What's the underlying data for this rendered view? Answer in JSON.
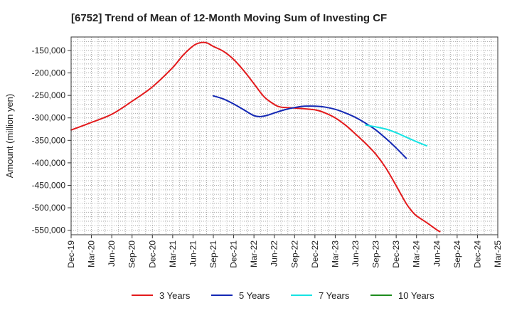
{
  "chart_data": {
    "type": "line",
    "title": "[6752]  Trend of Mean of 12-Month Moving Sum of Investing CF",
    "xlabel": "",
    "ylabel": "Amount (million yen)",
    "ylim": [
      -560000,
      -120000
    ],
    "yticks": [
      -150000,
      -200000,
      -250000,
      -300000,
      -350000,
      -400000,
      -450000,
      -500000,
      -550000
    ],
    "ytick_labels": [
      "-150,000",
      "-200,000",
      "-250,000",
      "-300,000",
      "-350,000",
      "-400,000",
      "-450,000",
      "-500,000",
      "-550,000"
    ],
    "xtick_labels": [
      "Dec-19",
      "Mar-20",
      "Jun-20",
      "Sep-20",
      "Dec-20",
      "Mar-21",
      "Jun-21",
      "Sep-21",
      "Dec-21",
      "Mar-22",
      "Jun-22",
      "Sep-22",
      "Dec-22",
      "Mar-23",
      "Jun-23",
      "Sep-23",
      "Dec-23",
      "Mar-24",
      "Jun-24",
      "Sep-24",
      "Dec-24",
      "Mar-25"
    ],
    "grid": true,
    "legend_position": "bottom",
    "series": [
      {
        "name": "3 Years",
        "color": "#e31a1c",
        "points": [
          [
            0,
            -327000
          ],
          [
            1,
            -310000
          ],
          [
            2,
            -292000
          ],
          [
            3,
            -263000
          ],
          [
            4,
            -231000
          ],
          [
            5,
            -188000
          ],
          [
            5.5,
            -161000
          ],
          [
            6,
            -140000
          ],
          [
            6.33,
            -133000
          ],
          [
            6.67,
            -133000
          ],
          [
            7,
            -141000
          ],
          [
            7.5,
            -152000
          ],
          [
            8,
            -170000
          ],
          [
            8.5,
            -195000
          ],
          [
            9,
            -224000
          ],
          [
            9.5,
            -253000
          ],
          [
            10,
            -270000
          ],
          [
            10.33,
            -276000
          ],
          [
            11,
            -278000
          ],
          [
            12,
            -282000
          ],
          [
            12.5,
            -289000
          ],
          [
            13,
            -300000
          ],
          [
            13.5,
            -316000
          ],
          [
            14,
            -336000
          ],
          [
            14.5,
            -357000
          ],
          [
            15,
            -381000
          ],
          [
            15.5,
            -412000
          ],
          [
            16,
            -451000
          ],
          [
            16.5,
            -491000
          ],
          [
            16.8,
            -509000
          ],
          [
            17,
            -518000
          ],
          [
            17.5,
            -533000
          ],
          [
            18,
            -549000
          ],
          [
            18.15,
            -553000
          ]
        ]
      },
      {
        "name": "5 Years",
        "color": "#1428b4",
        "points": [
          [
            7,
            -251000
          ],
          [
            7.5,
            -258000
          ],
          [
            8,
            -269000
          ],
          [
            8.5,
            -282000
          ],
          [
            9,
            -295000
          ],
          [
            9.33,
            -297000
          ],
          [
            9.67,
            -294000
          ],
          [
            10,
            -289000
          ],
          [
            10.5,
            -282000
          ],
          [
            11,
            -277000
          ],
          [
            11.5,
            -274000
          ],
          [
            12,
            -274000
          ],
          [
            12.5,
            -276000
          ],
          [
            13,
            -281000
          ],
          [
            13.5,
            -289000
          ],
          [
            14,
            -299000
          ],
          [
            14.5,
            -312000
          ],
          [
            15,
            -327000
          ],
          [
            15.5,
            -346000
          ],
          [
            16,
            -367000
          ],
          [
            16.5,
            -390000
          ]
        ]
      },
      {
        "name": "7 Years",
        "color": "#17e3e3",
        "points": [
          [
            14.5,
            -316000
          ],
          [
            15,
            -320000
          ],
          [
            15.5,
            -325000
          ],
          [
            16,
            -333000
          ],
          [
            16.5,
            -343000
          ],
          [
            17,
            -353000
          ],
          [
            17.5,
            -362000
          ]
        ]
      },
      {
        "name": "10 Years",
        "color": "#1e8c1e",
        "points": []
      }
    ]
  }
}
